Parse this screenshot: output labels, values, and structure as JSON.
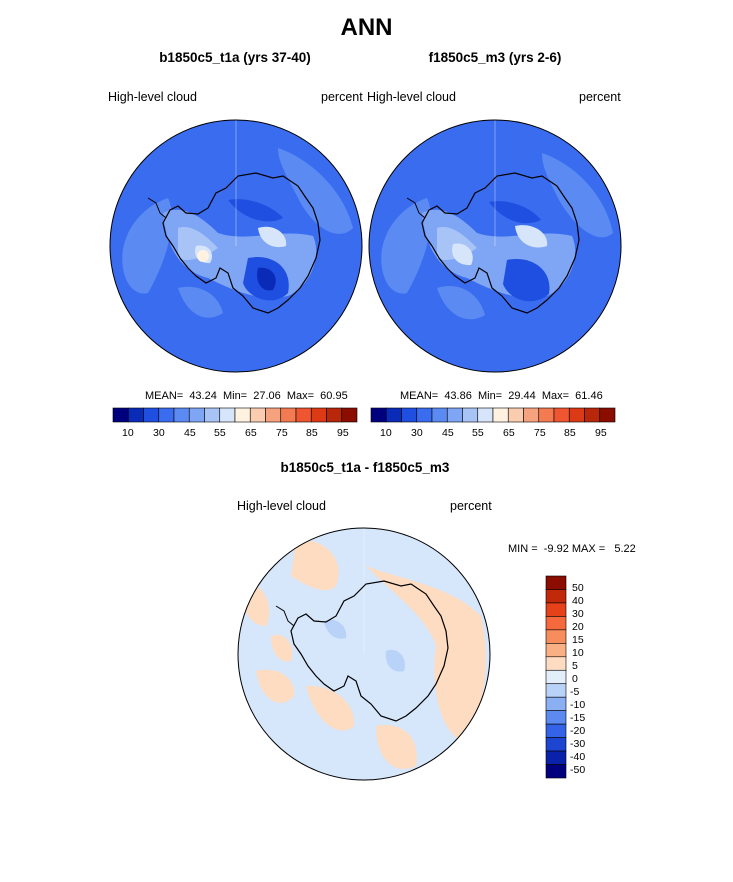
{
  "main_title": "ANN",
  "colors": {
    "abs_palette": [
      "#00007f",
      "#0a2ab8",
      "#1f4fe0",
      "#3a6cf0",
      "#5a8af2",
      "#7fa6f5",
      "#a8c4f7",
      "#d6e5fa",
      "#fff2e0",
      "#fbcdb0",
      "#f7a27e",
      "#f47a52",
      "#ef5530",
      "#dc3a14",
      "#b8270a",
      "#8a0d00"
    ],
    "diff_palette": [
      "#8a0d00",
      "#c2280a",
      "#e5421a",
      "#f56a3c",
      "#f78d5c",
      "#f9b084",
      "#fddcc2",
      "#e3eefb",
      "#b8d2f8",
      "#8aaff3",
      "#5d8af0",
      "#3563e8",
      "#1e44d2",
      "#0a22aa",
      "#00007f"
    ],
    "ocean_fill": "#3b6cf0",
    "diff_fill": "#d6e6fb"
  },
  "panels": [
    {
      "title": "b1850c5_t1a (yrs 37-40)",
      "variable": "High-level cloud",
      "units": "percent",
      "stats_text": "MEAN=  43.24  Min=  27.06  Max=  60.95"
    },
    {
      "title": "f1850c5_m3 (yrs 2-6)",
      "variable": "High-level cloud",
      "units": "percent",
      "stats_text": "MEAN=  43.86  Min=  29.44  Max=  61.46"
    }
  ],
  "abs_colorbar_labels": [
    "10",
    "30",
    "45",
    "55",
    "65",
    "75",
    "85",
    "95"
  ],
  "diff_panel": {
    "title": "b1850c5_t1a - f1850c5_m3",
    "variable": "High-level cloud",
    "units": "percent",
    "stats_text": "MIN =  -9.92 MAX =   5.22",
    "colorbar_labels": [
      "50",
      "40",
      "30",
      "20",
      "15",
      "10",
      "5",
      "0",
      "-5",
      "-10",
      "-15",
      "-20",
      "-30",
      "-40",
      "-50"
    ]
  },
  "chart_data": [
    {
      "type": "heatmap",
      "title": "b1850c5_t1a (yrs 37-40)",
      "variable": "High-level cloud",
      "units": "percent",
      "projection": "south-polar stereographic",
      "mean": 43.24,
      "min": 27.06,
      "max": 60.95,
      "colorbar_levels": [
        10,
        30,
        45,
        55,
        65,
        75,
        85,
        95
      ]
    },
    {
      "type": "heatmap",
      "title": "f1850c5_m3 (yrs 2-6)",
      "variable": "High-level cloud",
      "units": "percent",
      "projection": "south-polar stereographic",
      "mean": 43.86,
      "min": 29.44,
      "max": 61.46,
      "colorbar_levels": [
        10,
        30,
        45,
        55,
        65,
        75,
        85,
        95
      ]
    },
    {
      "type": "heatmap",
      "title": "b1850c5_t1a - f1850c5_m3",
      "variable": "High-level cloud",
      "units": "percent",
      "projection": "south-polar stereographic",
      "min": -9.92,
      "max": 5.22,
      "colorbar_levels": [
        50,
        40,
        30,
        20,
        15,
        10,
        5,
        0,
        -5,
        -10,
        -15,
        -20,
        -30,
        -40,
        -50
      ]
    }
  ]
}
